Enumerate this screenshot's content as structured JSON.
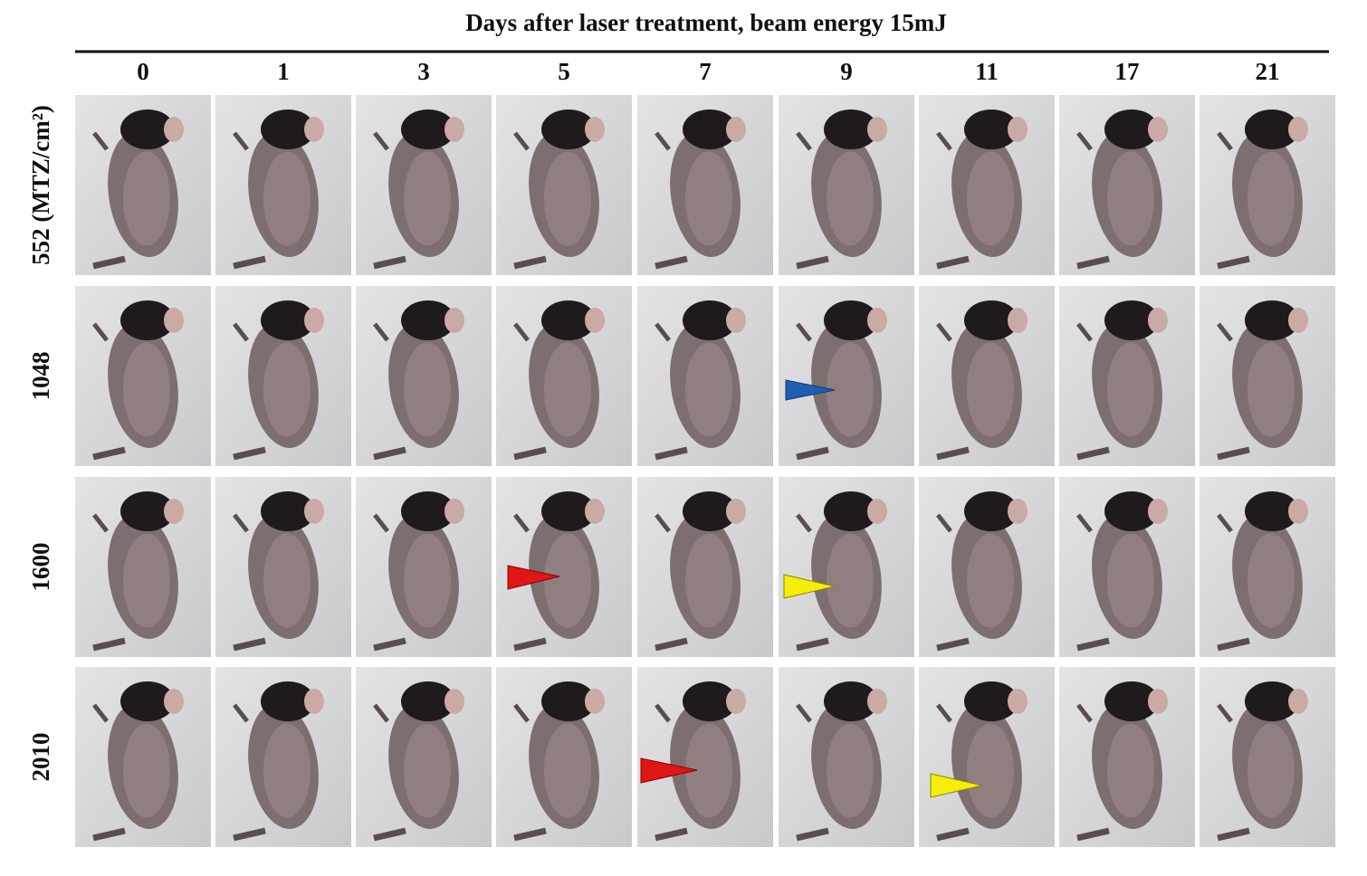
{
  "title": "Days after laser treatment, beam energy 15mJ",
  "columns": [
    "0",
    "1",
    "3",
    "5",
    "7",
    "9",
    "11",
    "17",
    "21"
  ],
  "rows": [
    "552 (MTZ/cm²)",
    "1048",
    "1600",
    "2010"
  ]
}
